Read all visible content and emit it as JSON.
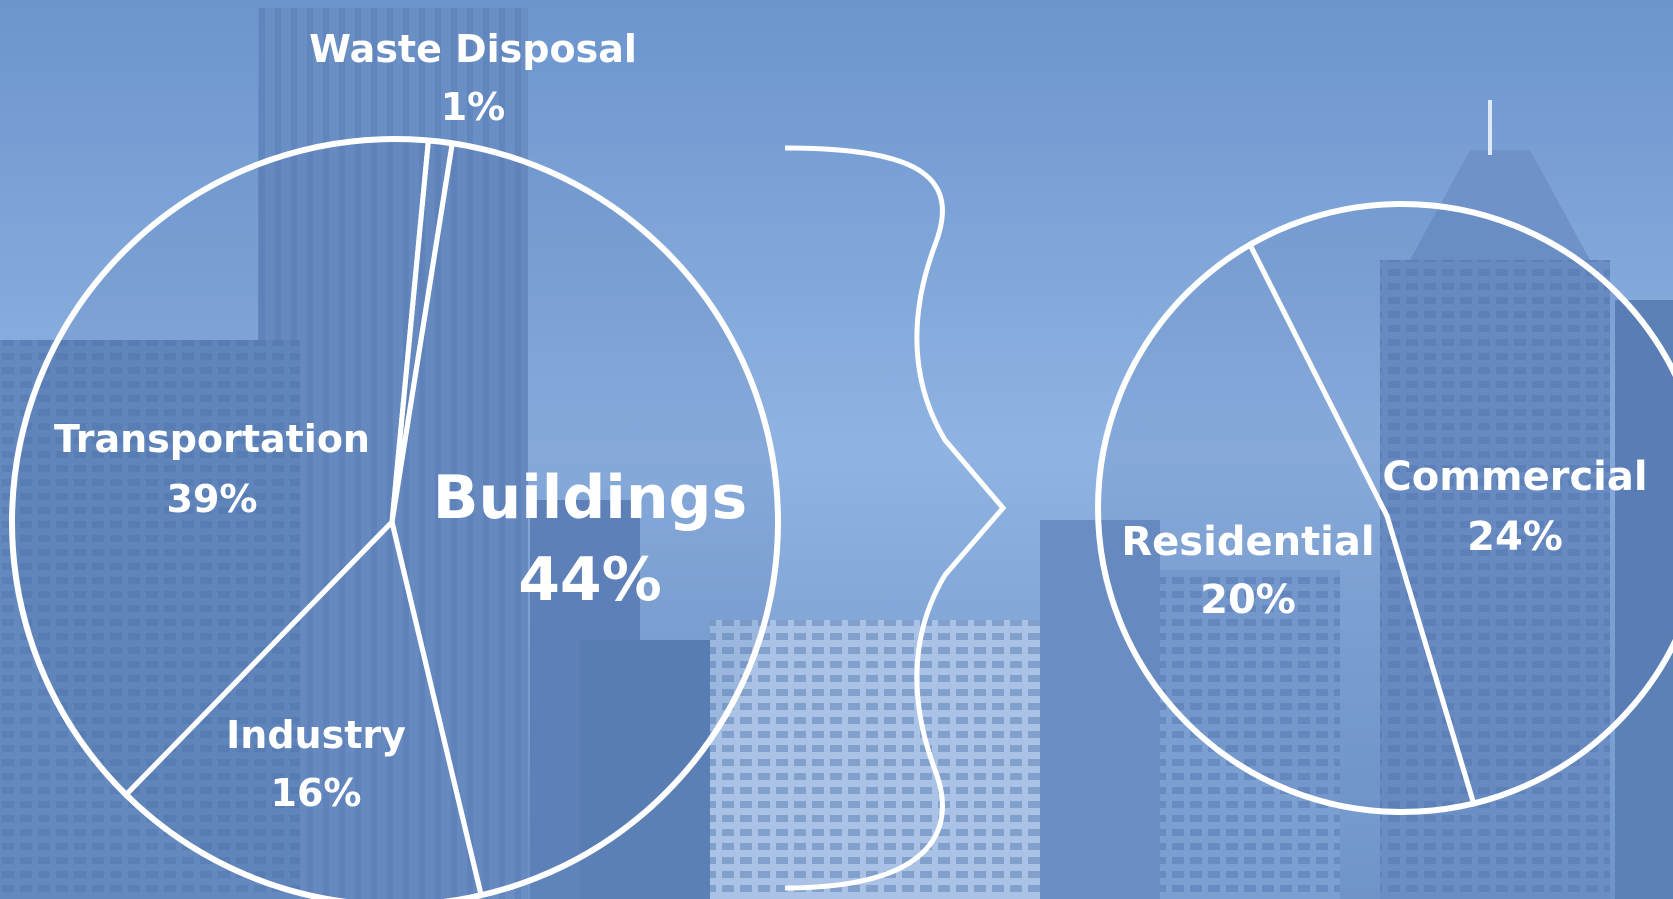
{
  "chart_data": [
    {
      "type": "pie",
      "slices": [
        {
          "label": "Waste Disposal",
          "value": 1,
          "value_label": "1%"
        },
        {
          "label": "Buildings",
          "value": 44,
          "value_label": "44%"
        },
        {
          "label": "Industry",
          "value": 16,
          "value_label": "16%"
        },
        {
          "label": "Transportation",
          "value": 39,
          "value_label": "39%"
        }
      ],
      "start_angle_deg": 5,
      "direction": "clockwise",
      "slice_border_color": "#ffffff"
    },
    {
      "type": "pie",
      "slices": [
        {
          "label": "Commercial",
          "value": 24,
          "value_label": "24%"
        },
        {
          "label": "Residential",
          "value": 20,
          "value_label": "20%"
        }
      ],
      "start_angle_deg": -30,
      "direction": "clockwise",
      "slice_border_color": "#ffffff"
    }
  ],
  "colors": {
    "background_top": "#6f97cf",
    "background_bottom": "#6d92c6",
    "outline": "#ffffff",
    "label_text": "#ffffff"
  }
}
